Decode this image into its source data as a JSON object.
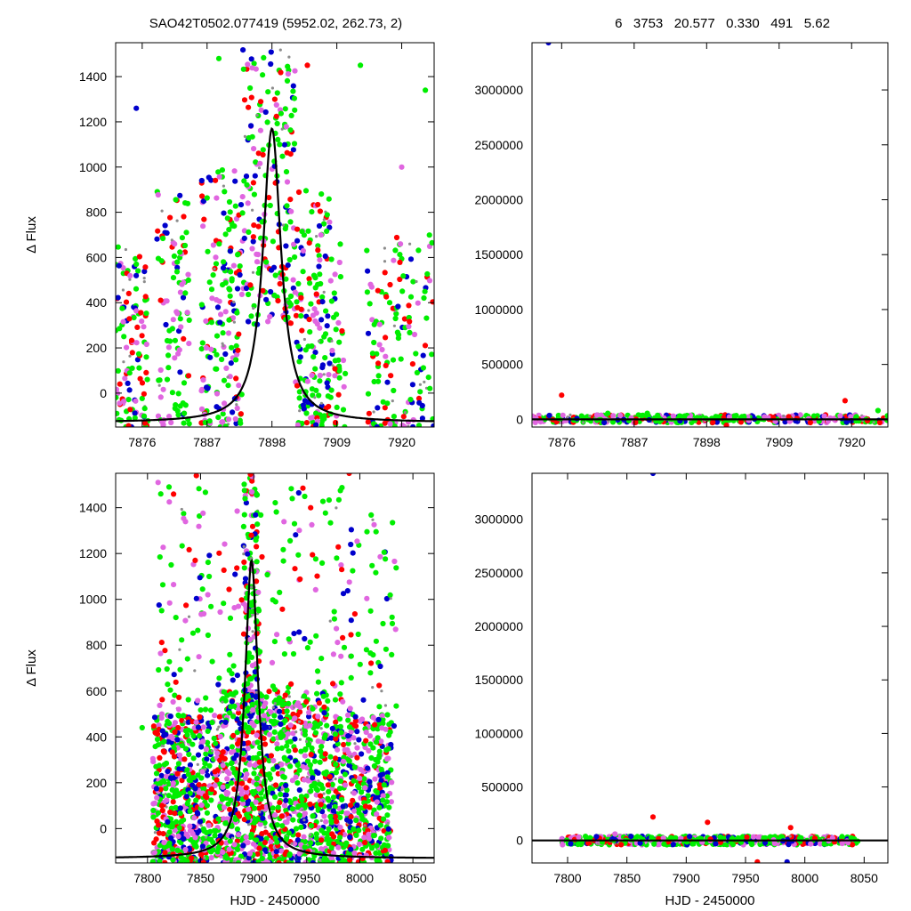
{
  "header": {
    "title": "SAO42T0502.077419 (5952.02, 262.73,    2)",
    "stats": "6   3753   20.577   0.330   491   5.62"
  },
  "colors": {
    "axis": "#000000",
    "model": "#000000",
    "series": [
      "#0000cc",
      "#ff0000",
      "#00ee00",
      "#e066e0",
      "#8c8c8c"
    ]
  },
  "chart_data": [
    {
      "id": "top-left",
      "type": "scatter",
      "xlabel": "",
      "ylabel": "Δ Flux",
      "xlim": [
        7871.5,
        7925.5
      ],
      "ylim": [
        -150,
        1550
      ],
      "xticks": [
        7876,
        7887,
        7898,
        7909,
        7920
      ],
      "yticks": [
        0,
        200,
        400,
        600,
        800,
        1000,
        1200,
        1400
      ],
      "ytick_side": "left",
      "model": {
        "peak": 1170,
        "center": 7898.0,
        "width": 1.85,
        "baseline": -130
      },
      "point_clusters": [
        {
          "x": [
            7871.5,
            7877.0
          ],
          "y": [
            -150,
            650
          ],
          "count": 120
        },
        {
          "x": [
            7878.5,
            7884.0
          ],
          "y": [
            -150,
            900
          ],
          "count": 110
        },
        {
          "x": [
            7886.0,
            7893.0
          ],
          "y": [
            -150,
            1000
          ],
          "count": 190
        },
        {
          "x": [
            7893.0,
            7902.0
          ],
          "y": [
            300,
            1550
          ],
          "count": 220
        },
        {
          "x": [
            7902.0,
            7908.0
          ],
          "y": [
            -150,
            900
          ],
          "count": 170
        },
        {
          "x": [
            7908.0,
            7910.5
          ],
          "y": [
            -150,
            700
          ],
          "count": 40
        },
        {
          "x": [
            7914.0,
            7925.5
          ],
          "y": [
            -150,
            700
          ],
          "count": 150
        }
      ],
      "outliers": [
        {
          "x": 7875.0,
          "y": 1260,
          "s": 0
        },
        {
          "x": 7889.0,
          "y": 1480,
          "s": 2
        },
        {
          "x": 7904.0,
          "y": 1450,
          "s": 1
        },
        {
          "x": 7913.0,
          "y": 1450,
          "s": 2
        },
        {
          "x": 7920.0,
          "y": 1000,
          "s": 3
        },
        {
          "x": 7924.0,
          "y": 1340,
          "s": 2
        }
      ]
    },
    {
      "id": "top-right",
      "type": "scatter",
      "xlabel": "",
      "ylabel": "",
      "xlim": [
        7871.5,
        7925.5
      ],
      "ylim": [
        -70000,
        3430000
      ],
      "xticks": [
        7876,
        7887,
        7898,
        7909,
        7920
      ],
      "yticks": [
        0,
        500000,
        1000000,
        1500000,
        2000000,
        2500000,
        3000000
      ],
      "ytick_side": "left-outside-right-ticks",
      "model": {
        "flat": 0
      },
      "band": {
        "x": [
          7871.5,
          7925.5
        ],
        "y": [
          -30000,
          40000
        ],
        "count": 400
      },
      "outliers": [
        {
          "x": 7874.0,
          "y": 3430000,
          "s": 0
        },
        {
          "x": 7876.0,
          "y": 220000,
          "s": 1
        },
        {
          "x": 7883.0,
          "y": 55000,
          "s": 2
        },
        {
          "x": 7889.0,
          "y": 55000,
          "s": 2
        },
        {
          "x": 7901.0,
          "y": -55000,
          "s": 1
        },
        {
          "x": 7919.0,
          "y": 170000,
          "s": 1
        },
        {
          "x": 7924.0,
          "y": 80000,
          "s": 2
        }
      ]
    },
    {
      "id": "bottom-left",
      "type": "scatter",
      "xlabel": "HJD - 2450000",
      "ylabel": "Δ Flux",
      "xlim": [
        7770,
        8070
      ],
      "ylim": [
        -150,
        1550
      ],
      "xticks": [
        7800,
        7850,
        7900,
        7950,
        8000,
        8050
      ],
      "yticks": [
        0,
        200,
        400,
        600,
        800,
        1000,
        1200,
        1400
      ],
      "ytick_side": "left",
      "model": {
        "peak": 1170,
        "center": 7898.0,
        "width": 7.5,
        "baseline": -130
      },
      "point_clusters": [
        {
          "x": [
            7805,
            7870
          ],
          "y": [
            -150,
            500
          ],
          "count": 600
        },
        {
          "x": [
            7870,
            7920
          ],
          "y": [
            -150,
            600
          ],
          "count": 500
        },
        {
          "x": [
            7890,
            7905
          ],
          "y": [
            500,
            1550
          ],
          "count": 150
        },
        {
          "x": [
            7920,
            7970
          ],
          "y": [
            -150,
            600
          ],
          "count": 450
        },
        {
          "x": [
            7970,
            8030
          ],
          "y": [
            -150,
            500
          ],
          "count": 500
        },
        {
          "x": [
            7810,
            8035
          ],
          "y": [
            400,
            1500
          ],
          "count": 320
        }
      ],
      "outliers": [
        {
          "x": 7795,
          "y": 440,
          "s": 2
        },
        {
          "x": 7810,
          "y": 1510,
          "s": 3
        },
        {
          "x": 7846,
          "y": 1540,
          "s": 1
        },
        {
          "x": 7990,
          "y": 1550,
          "s": 1
        }
      ]
    },
    {
      "id": "bottom-right",
      "type": "scatter",
      "xlabel": "HJD - 2450000",
      "ylabel": "",
      "xlim": [
        7770,
        8070
      ],
      "ylim": [
        -210000,
        3430000
      ],
      "xticks": [
        7800,
        7850,
        7900,
        7950,
        8000,
        8050
      ],
      "yticks": [
        0,
        500000,
        1000000,
        1500000,
        2000000,
        2500000,
        3000000
      ],
      "ytick_side": "left-outside-right-ticks",
      "model": {
        "flat": 0
      },
      "band": {
        "x": [
          7795,
          8045
        ],
        "y": [
          -40000,
          40000
        ],
        "count": 600
      },
      "outliers": [
        {
          "x": 7872,
          "y": 3430000,
          "s": 0
        },
        {
          "x": 7872,
          "y": 220000,
          "s": 1
        },
        {
          "x": 7918,
          "y": 170000,
          "s": 1
        },
        {
          "x": 7988,
          "y": 120000,
          "s": 1
        },
        {
          "x": 7960,
          "y": -200000,
          "s": 1
        },
        {
          "x": 7985,
          "y": -200000,
          "s": 0
        },
        {
          "x": 7840,
          "y": 60000,
          "s": 3
        }
      ]
    }
  ]
}
